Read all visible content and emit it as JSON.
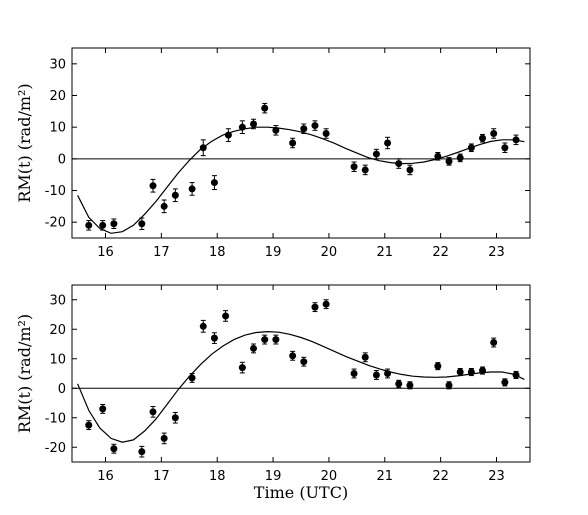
{
  "chart_data": [
    {
      "type": "scatter",
      "ylabel": "RM(t)  (rad/m²)",
      "xlabel": "",
      "xlim": [
        15.4,
        23.6
      ],
      "ylim": [
        -25,
        35
      ],
      "x_ticks": [
        16,
        17,
        18,
        19,
        20,
        21,
        22,
        23
      ],
      "y_ticks": [
        -20,
        -10,
        0,
        10,
        20,
        30
      ],
      "zero_line": true,
      "points": [
        {
          "x": 15.7,
          "y": -21.0,
          "err": 1.5
        },
        {
          "x": 15.95,
          "y": -21.0,
          "err": 1.5
        },
        {
          "x": 16.15,
          "y": -20.5,
          "err": 1.5
        },
        {
          "x": 16.65,
          "y": -20.5,
          "err": 1.8
        },
        {
          "x": 16.85,
          "y": -8.5,
          "err": 2.0
        },
        {
          "x": 17.05,
          "y": -15.0,
          "err": 2.0
        },
        {
          "x": 17.25,
          "y": -11.5,
          "err": 2.0
        },
        {
          "x": 17.55,
          "y": -9.5,
          "err": 2.0
        },
        {
          "x": 17.75,
          "y": 3.5,
          "err": 2.5
        },
        {
          "x": 17.95,
          "y": -7.5,
          "err": 2.2
        },
        {
          "x": 18.2,
          "y": 7.5,
          "err": 2.0
        },
        {
          "x": 18.45,
          "y": 10.0,
          "err": 2.0
        },
        {
          "x": 18.65,
          "y": 11.0,
          "err": 1.5
        },
        {
          "x": 18.85,
          "y": 16.0,
          "err": 1.5
        },
        {
          "x": 19.05,
          "y": 9.0,
          "err": 1.5
        },
        {
          "x": 19.35,
          "y": 5.0,
          "err": 1.5
        },
        {
          "x": 19.55,
          "y": 9.5,
          "err": 1.5
        },
        {
          "x": 19.75,
          "y": 10.5,
          "err": 1.5
        },
        {
          "x": 19.95,
          "y": 8.0,
          "err": 1.5
        },
        {
          "x": 20.45,
          "y": -2.5,
          "err": 1.5
        },
        {
          "x": 20.65,
          "y": -3.5,
          "err": 1.5
        },
        {
          "x": 20.85,
          "y": 1.5,
          "err": 1.5
        },
        {
          "x": 21.05,
          "y": 5.0,
          "err": 1.8
        },
        {
          "x": 21.25,
          "y": -1.5,
          "err": 1.5
        },
        {
          "x": 21.45,
          "y": -3.5,
          "err": 1.5
        },
        {
          "x": 21.95,
          "y": 0.8,
          "err": 1.2
        },
        {
          "x": 22.15,
          "y": -0.8,
          "err": 1.2
        },
        {
          "x": 22.35,
          "y": 0.3,
          "err": 1.2
        },
        {
          "x": 22.55,
          "y": 3.5,
          "err": 1.2
        },
        {
          "x": 22.75,
          "y": 6.5,
          "err": 1.2
        },
        {
          "x": 22.95,
          "y": 8.0,
          "err": 1.5
        },
        {
          "x": 23.15,
          "y": 3.5,
          "err": 1.5
        },
        {
          "x": 23.35,
          "y": 6.0,
          "err": 1.5
        }
      ],
      "fit_curve": [
        [
          15.5,
          -11.5
        ],
        [
          15.7,
          -18.5
        ],
        [
          15.9,
          -22.0
        ],
        [
          16.1,
          -23.5
        ],
        [
          16.3,
          -23.0
        ],
        [
          16.5,
          -21.0
        ],
        [
          16.7,
          -17.5
        ],
        [
          16.9,
          -13.5
        ],
        [
          17.1,
          -9.0
        ],
        [
          17.3,
          -4.5
        ],
        [
          17.5,
          -0.5
        ],
        [
          17.7,
          3.0
        ],
        [
          17.9,
          5.5
        ],
        [
          18.1,
          7.5
        ],
        [
          18.3,
          8.7
        ],
        [
          18.5,
          9.5
        ],
        [
          18.7,
          10.0
        ],
        [
          18.9,
          10.0
        ],
        [
          19.1,
          9.7
        ],
        [
          19.3,
          9.2
        ],
        [
          19.5,
          8.5
        ],
        [
          19.7,
          7.5
        ],
        [
          19.9,
          6.3
        ],
        [
          20.1,
          4.9
        ],
        [
          20.3,
          3.3
        ],
        [
          20.5,
          1.8
        ],
        [
          20.7,
          0.4
        ],
        [
          20.9,
          -0.6
        ],
        [
          21.1,
          -1.2
        ],
        [
          21.3,
          -1.5
        ],
        [
          21.5,
          -1.4
        ],
        [
          21.7,
          -1.0
        ],
        [
          21.9,
          -0.2
        ],
        [
          22.1,
          0.8
        ],
        [
          22.3,
          2.0
        ],
        [
          22.5,
          3.3
        ],
        [
          22.7,
          4.5
        ],
        [
          22.9,
          5.5
        ],
        [
          23.1,
          6.0
        ],
        [
          23.3,
          6.0
        ],
        [
          23.5,
          5.4
        ]
      ]
    },
    {
      "type": "scatter",
      "ylabel": "RM(t)  (rad/m²)",
      "xlabel": "Time (UTC)",
      "xlim": [
        15.4,
        23.6
      ],
      "ylim": [
        -25,
        35
      ],
      "x_ticks": [
        16,
        17,
        18,
        19,
        20,
        21,
        22,
        23
      ],
      "y_ticks": [
        -20,
        -10,
        0,
        10,
        20,
        30
      ],
      "zero_line": true,
      "points": [
        {
          "x": 15.7,
          "y": -12.5,
          "err": 1.5
        },
        {
          "x": 15.95,
          "y": -7.0,
          "err": 1.5
        },
        {
          "x": 16.15,
          "y": -20.5,
          "err": 1.5
        },
        {
          "x": 16.65,
          "y": -21.5,
          "err": 1.8
        },
        {
          "x": 16.85,
          "y": -8.0,
          "err": 1.8
        },
        {
          "x": 17.05,
          "y": -17.0,
          "err": 1.8
        },
        {
          "x": 17.25,
          "y": -10.0,
          "err": 1.8
        },
        {
          "x": 17.55,
          "y": 3.5,
          "err": 1.5
        },
        {
          "x": 17.75,
          "y": 21.0,
          "err": 2.0
        },
        {
          "x": 17.95,
          "y": 17.0,
          "err": 1.8
        },
        {
          "x": 18.15,
          "y": 24.5,
          "err": 1.8
        },
        {
          "x": 18.45,
          "y": 7.0,
          "err": 1.8
        },
        {
          "x": 18.65,
          "y": 13.5,
          "err": 1.5
        },
        {
          "x": 18.85,
          "y": 16.5,
          "err": 1.5
        },
        {
          "x": 19.05,
          "y": 16.5,
          "err": 1.5
        },
        {
          "x": 19.35,
          "y": 11.0,
          "err": 1.5
        },
        {
          "x": 19.55,
          "y": 9.0,
          "err": 1.5
        },
        {
          "x": 19.75,
          "y": 27.5,
          "err": 1.5
        },
        {
          "x": 19.95,
          "y": 28.5,
          "err": 1.5
        },
        {
          "x": 20.45,
          "y": 5.0,
          "err": 1.5
        },
        {
          "x": 20.65,
          "y": 10.5,
          "err": 1.5
        },
        {
          "x": 20.85,
          "y": 4.5,
          "err": 1.5
        },
        {
          "x": 21.05,
          "y": 5.0,
          "err": 1.5
        },
        {
          "x": 21.25,
          "y": 1.5,
          "err": 1.2
        },
        {
          "x": 21.45,
          "y": 1.0,
          "err": 1.2
        },
        {
          "x": 21.95,
          "y": 7.5,
          "err": 1.2
        },
        {
          "x": 22.15,
          "y": 1.0,
          "err": 1.2
        },
        {
          "x": 22.35,
          "y": 5.5,
          "err": 1.2
        },
        {
          "x": 22.55,
          "y": 5.5,
          "err": 1.2
        },
        {
          "x": 22.75,
          "y": 6.0,
          "err": 1.2
        },
        {
          "x": 22.95,
          "y": 15.5,
          "err": 1.5
        },
        {
          "x": 23.15,
          "y": 2.0,
          "err": 1.2
        },
        {
          "x": 23.35,
          "y": 4.5,
          "err": 1.2
        }
      ],
      "fit_curve": [
        [
          15.5,
          1.5
        ],
        [
          15.7,
          -7.5
        ],
        [
          15.9,
          -13.5
        ],
        [
          16.1,
          -17.0
        ],
        [
          16.3,
          -18.3
        ],
        [
          16.5,
          -17.5
        ],
        [
          16.7,
          -14.5
        ],
        [
          16.9,
          -10.5
        ],
        [
          17.1,
          -5.5
        ],
        [
          17.3,
          -0.5
        ],
        [
          17.5,
          4.0
        ],
        [
          17.7,
          8.0
        ],
        [
          17.9,
          11.5
        ],
        [
          18.1,
          14.3
        ],
        [
          18.3,
          16.5
        ],
        [
          18.5,
          18.0
        ],
        [
          18.7,
          18.9
        ],
        [
          18.9,
          19.2
        ],
        [
          19.1,
          19.0
        ],
        [
          19.3,
          18.3
        ],
        [
          19.5,
          17.2
        ],
        [
          19.7,
          15.8
        ],
        [
          19.9,
          14.2
        ],
        [
          20.1,
          12.5
        ],
        [
          20.3,
          10.8
        ],
        [
          20.5,
          9.3
        ],
        [
          20.7,
          7.8
        ],
        [
          20.9,
          6.6
        ],
        [
          21.1,
          5.5
        ],
        [
          21.3,
          4.7
        ],
        [
          21.5,
          4.1
        ],
        [
          21.7,
          3.8
        ],
        [
          21.9,
          3.7
        ],
        [
          22.1,
          3.8
        ],
        [
          22.3,
          4.2
        ],
        [
          22.5,
          4.7
        ],
        [
          22.7,
          5.2
        ],
        [
          22.9,
          5.5
        ],
        [
          23.1,
          5.5
        ],
        [
          23.3,
          4.8
        ],
        [
          23.5,
          3.0
        ]
      ]
    }
  ]
}
